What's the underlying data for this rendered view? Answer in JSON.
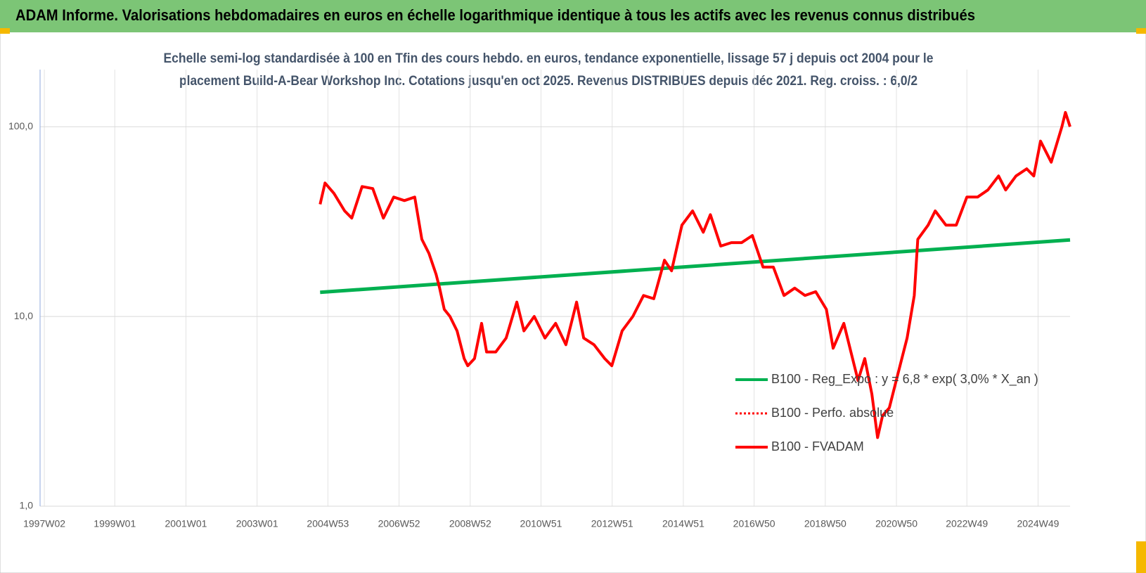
{
  "header": {
    "title": "ADAM Informe. Valorisations hebdomadaires en euros en échelle logarithmique identique à tous les actifs avec les revenus connus distribués"
  },
  "chart_data": {
    "type": "line",
    "title": [
      "Echelle semi-log standardisée à 100 en Tfin des cours hebdo. en euros, tendance exponentielle, lissage 57 j depuis oct 2004 pour le",
      "placement Build-A-Bear Workshop Inc.  Cotations jusqu'en oct 2025. Revenus DISTRIBUES depuis déc 2021. Reg. croiss. : 6,0/2"
    ],
    "yscale": "log",
    "xlim": [
      1996.9,
      2025.85
    ],
    "ylim": [
      1,
      200
    ],
    "yticks": [
      {
        "value": 1,
        "label": "1,0"
      },
      {
        "value": 10,
        "label": "10,0"
      },
      {
        "value": 100,
        "label": "100,0"
      }
    ],
    "xticks": [
      {
        "value": 1997.02,
        "label": "1997W02"
      },
      {
        "value": 1999.0,
        "label": "1999W01"
      },
      {
        "value": 2001.0,
        "label": "2001W01"
      },
      {
        "value": 2003.0,
        "label": "2003W01"
      },
      {
        "value": 2004.99,
        "label": "2004W53"
      },
      {
        "value": 2006.99,
        "label": "2006W52"
      },
      {
        "value": 2008.99,
        "label": "2008W52"
      },
      {
        "value": 2010.98,
        "label": "2010W51"
      },
      {
        "value": 2012.98,
        "label": "2012W51"
      },
      {
        "value": 2014.98,
        "label": "2014W51"
      },
      {
        "value": 2016.97,
        "label": "2016W50"
      },
      {
        "value": 2018.97,
        "label": "2018W50"
      },
      {
        "value": 2020.97,
        "label": "2020W50"
      },
      {
        "value": 2022.95,
        "label": "2022W49"
      },
      {
        "value": 2024.95,
        "label": "2024W49"
      }
    ],
    "grid": true,
    "series": [
      {
        "name": "B100 - Reg_Expo : y = 6,8 * exp( 3,0% *  X_an )",
        "color": "#00b050",
        "style": "solid",
        "x": [
          2004.77,
          2025.85
        ],
        "values": [
          13.4,
          25.3
        ]
      },
      {
        "name": "B100 - Perfo. absolue",
        "color": "#ff0000",
        "style": "dotted"
      },
      {
        "name": "B100 - FVADAM",
        "color": "#ff0000",
        "style": "solid",
        "x": [
          2004.77,
          2004.91,
          2005.16,
          2005.46,
          2005.66,
          2005.95,
          2006.25,
          2006.55,
          2006.84,
          2007.14,
          2007.43,
          2007.63,
          2007.83,
          2008.03,
          2008.13,
          2008.26,
          2008.42,
          2008.62,
          2008.82,
          2008.92,
          2009.11,
          2009.31,
          2009.45,
          2009.71,
          2010.0,
          2010.3,
          2010.5,
          2010.79,
          2011.09,
          2011.39,
          2011.68,
          2011.98,
          2012.18,
          2012.47,
          2012.77,
          2012.97,
          2013.26,
          2013.56,
          2013.86,
          2014.15,
          2014.45,
          2014.65,
          2014.94,
          2015.24,
          2015.54,
          2015.74,
          2016.03,
          2016.33,
          2016.62,
          2016.92,
          2017.22,
          2017.51,
          2017.81,
          2018.11,
          2018.4,
          2018.7,
          2019.0,
          2019.19,
          2019.49,
          2019.69,
          2019.89,
          2020.08,
          2020.28,
          2020.44,
          2020.58,
          2020.77,
          2021.07,
          2021.27,
          2021.47,
          2021.57,
          2021.86,
          2022.06,
          2022.36,
          2022.65,
          2022.95,
          2023.25,
          2023.54,
          2023.84,
          2024.04,
          2024.33,
          2024.63,
          2024.83,
          2025.02,
          2025.32,
          2025.62,
          2025.72,
          2025.85
        ],
        "values": [
          39,
          50.5,
          44.5,
          36,
          33,
          48.4,
          47.2,
          33,
          42.6,
          40.8,
          42.6,
          25.5,
          21.5,
          16.7,
          14.1,
          10.9,
          10,
          8.4,
          6.0,
          5.5,
          6.0,
          9.2,
          6.5,
          6.5,
          7.7,
          11.9,
          8.4,
          10,
          7.7,
          9.2,
          7.1,
          11.9,
          7.7,
          7.1,
          6.0,
          5.5,
          8.4,
          10,
          12.9,
          12.4,
          19.8,
          17.4,
          30.3,
          36,
          27.8,
          34.4,
          23.5,
          24.5,
          24.5,
          26.7,
          18.2,
          18.2,
          12.9,
          14.1,
          12.9,
          13.5,
          10.9,
          6.8,
          9.2,
          6.5,
          4.6,
          6.0,
          3.9,
          2.3,
          3.0,
          3.3,
          5.5,
          7.7,
          12.9,
          25.5,
          30.3,
          36,
          30.3,
          30.3,
          42.6,
          42.6,
          46.4,
          55,
          46.4,
          55,
          60,
          55,
          84,
          65,
          100,
          119,
          100
        ]
      }
    ]
  }
}
